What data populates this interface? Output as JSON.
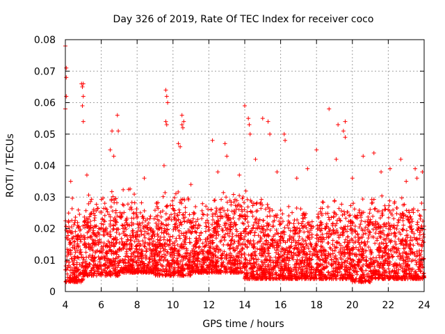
{
  "chart_data": {
    "type": "scatter",
    "title": "Day 326 of 2019, Rate Of TEC Index for receiver coco",
    "xlabel": "GPS time / hours",
    "ylabel": "ROTI / TECUs",
    "xlim": [
      4,
      24
    ],
    "ylim": [
      0,
      0.08
    ],
    "xticks": [
      4,
      6,
      8,
      10,
      12,
      14,
      16,
      18,
      20,
      22,
      24
    ],
    "xtick_labels": [
      "4",
      "6",
      "8",
      "10",
      "12",
      "14",
      "16",
      "18",
      "20",
      "22",
      "24"
    ],
    "yticks": [
      0,
      0.01,
      0.02,
      0.03,
      0.04,
      0.05,
      0.06,
      0.07,
      0.08
    ],
    "ytick_labels": [
      "0",
      "0.01",
      "0.02",
      "0.03",
      "0.04",
      "0.05",
      "0.06",
      "0.07",
      "0.08"
    ],
    "grid": true,
    "marker": "+",
    "series": [
      {
        "name": "ROTI",
        "color": "#ff0000",
        "points": [
          [
            4.0,
            0.078
          ],
          [
            4.05,
            0.071
          ],
          [
            4.05,
            0.068
          ],
          [
            4.05,
            0.062
          ],
          [
            4.0,
            0.058
          ],
          [
            4.9,
            0.066
          ],
          [
            5.0,
            0.066
          ],
          [
            4.95,
            0.065
          ],
          [
            5.0,
            0.062
          ],
          [
            4.95,
            0.059
          ],
          [
            5.0,
            0.054
          ],
          [
            6.6,
            0.051
          ],
          [
            6.9,
            0.056
          ],
          [
            6.95,
            0.051
          ],
          [
            9.6,
            0.064
          ],
          [
            9.65,
            0.062
          ],
          [
            9.7,
            0.06
          ],
          [
            9.6,
            0.054
          ],
          [
            9.65,
            0.053
          ],
          [
            10.5,
            0.056
          ],
          [
            10.6,
            0.054
          ],
          [
            10.5,
            0.053
          ],
          [
            10.55,
            0.052
          ],
          [
            10.3,
            0.047
          ],
          [
            10.4,
            0.046
          ],
          [
            12.2,
            0.048
          ],
          [
            12.9,
            0.047
          ],
          [
            14.0,
            0.059
          ],
          [
            14.2,
            0.055
          ],
          [
            14.25,
            0.053
          ],
          [
            14.3,
            0.05
          ],
          [
            15.0,
            0.055
          ],
          [
            15.3,
            0.054
          ],
          [
            15.4,
            0.05
          ],
          [
            16.2,
            0.05
          ],
          [
            16.25,
            0.048
          ],
          [
            18.0,
            0.045
          ],
          [
            18.7,
            0.058
          ],
          [
            19.2,
            0.053
          ],
          [
            19.6,
            0.054
          ],
          [
            19.5,
            0.051
          ],
          [
            19.6,
            0.049
          ],
          [
            20.6,
            0.043
          ],
          [
            21.2,
            0.044
          ],
          [
            22.7,
            0.042
          ],
          [
            23.5,
            0.039
          ],
          [
            23.9,
            0.038
          ],
          [
            4.3,
            0.035
          ],
          [
            5.2,
            0.037
          ],
          [
            6.5,
            0.045
          ],
          [
            6.7,
            0.043
          ],
          [
            8.4,
            0.036
          ],
          [
            9.5,
            0.04
          ],
          [
            11.0,
            0.034
          ],
          [
            12.5,
            0.038
          ],
          [
            13.0,
            0.043
          ],
          [
            13.7,
            0.037
          ],
          [
            14.6,
            0.042
          ],
          [
            15.8,
            0.038
          ],
          [
            16.9,
            0.036
          ],
          [
            17.5,
            0.039
          ],
          [
            19.1,
            0.042
          ],
          [
            20.0,
            0.036
          ],
          [
            21.6,
            0.038
          ],
          [
            22.1,
            0.039
          ],
          [
            23.0,
            0.035
          ],
          [
            23.6,
            0.036
          ]
        ]
      }
    ],
    "density_profile": {
      "description": "dense band of points between roughly 0.004 and 0.03 across the full time range",
      "hour_bins": [
        4,
        5,
        6,
        7,
        8,
        9,
        10,
        11,
        12,
        13,
        14,
        15,
        16,
        17,
        18,
        19,
        20,
        21,
        22,
        23
      ],
      "typical_max": [
        0.03,
        0.032,
        0.036,
        0.034,
        0.03,
        0.034,
        0.033,
        0.03,
        0.033,
        0.034,
        0.033,
        0.03,
        0.029,
        0.028,
        0.031,
        0.033,
        0.032,
        0.031,
        0.033,
        0.03
      ],
      "typical_min": [
        0.003,
        0.005,
        0.005,
        0.006,
        0.006,
        0.005,
        0.005,
        0.006,
        0.006,
        0.006,
        0.004,
        0.004,
        0.004,
        0.004,
        0.004,
        0.004,
        0.003,
        0.004,
        0.004,
        0.004
      ]
    }
  }
}
